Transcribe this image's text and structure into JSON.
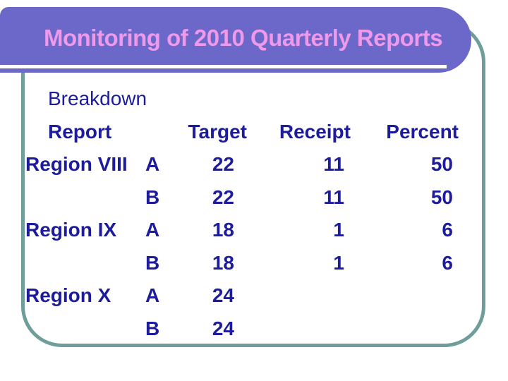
{
  "title": {
    "text": "Monitoring of 2010 Quarterly Reports"
  },
  "colors": {
    "title_bar_purple": "#6b68c9",
    "title_text_pink": "#ee99ea",
    "body_text_navy": "#1c1c9c",
    "box_border_teal": "#6f9e9a",
    "background": "#ffffff"
  },
  "table": {
    "intro_label": "Breakdown",
    "headers": {
      "report": "Report",
      "target": "Target",
      "receipt": "Receipt",
      "percent": "Percent"
    },
    "rows": [
      {
        "region": "Region VIII",
        "letter": "A",
        "target": "22",
        "receipt": "11",
        "percent": "50"
      },
      {
        "region": "",
        "letter": "B",
        "target": "22",
        "receipt": "11",
        "percent": "50"
      },
      {
        "region": "Region IX",
        "letter": "A",
        "target": "18",
        "receipt": "1",
        "percent": "6"
      },
      {
        "region": "",
        "letter": "B",
        "target": "18",
        "receipt": "1",
        "percent": "6"
      },
      {
        "region": "Region X",
        "letter": "A",
        "target": "24",
        "receipt": "",
        "percent": ""
      },
      {
        "region": "",
        "letter": "B",
        "target": "24",
        "receipt": "",
        "percent": ""
      }
    ]
  },
  "chart_data": {
    "type": "table",
    "title": "Monitoring of 2010 Quarterly Reports",
    "columns": [
      "Report",
      "",
      "Target",
      "Receipt",
      "Percent"
    ],
    "rows": [
      [
        "Region VIII",
        "A",
        22,
        11,
        50
      ],
      [
        "",
        "B",
        22,
        11,
        50
      ],
      [
        "Region IX",
        "A",
        18,
        1,
        6
      ],
      [
        "",
        "B",
        18,
        1,
        6
      ],
      [
        "Region X",
        "A",
        24,
        null,
        null
      ],
      [
        "",
        "B",
        24,
        null,
        null
      ]
    ]
  }
}
